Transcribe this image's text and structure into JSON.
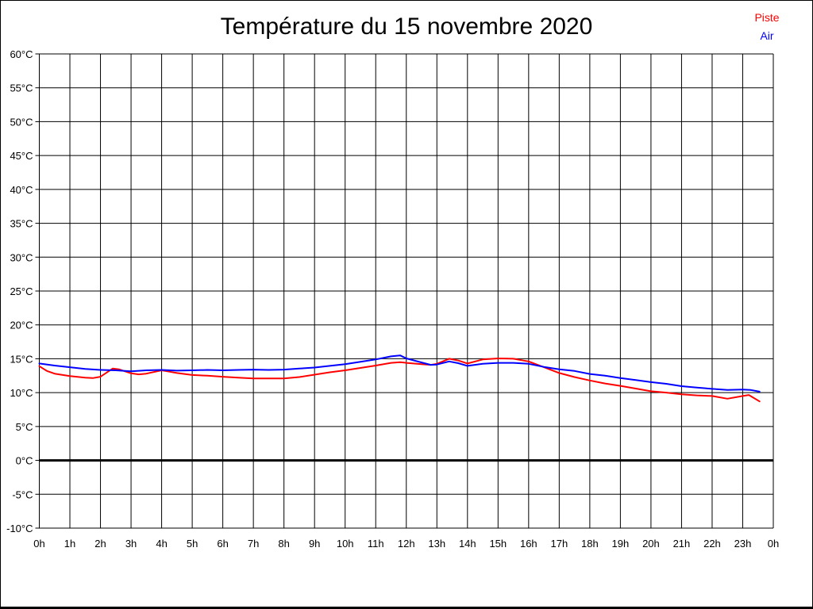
{
  "chart_data": {
    "type": "line",
    "title": "Température du 15 novembre 2020",
    "xlabel": "",
    "ylabel": "",
    "xlim": [
      0,
      24
    ],
    "ylim": [
      -10,
      60
    ],
    "y_step_deg": 5,
    "grid": "on",
    "zero_line_bold": true,
    "legend_position": "top-right",
    "x_ticks": [
      "0h",
      "1h",
      "2h",
      "3h",
      "4h",
      "5h",
      "6h",
      "7h",
      "8h",
      "9h",
      "10h",
      "11h",
      "12h",
      "13h",
      "14h",
      "15h",
      "16h",
      "17h",
      "18h",
      "19h",
      "20h",
      "21h",
      "22h",
      "23h",
      "0h"
    ],
    "y_ticks": [
      "60°C",
      "55°C",
      "50°C",
      "45°C",
      "40°C",
      "35°C",
      "30°C",
      "25°C",
      "20°C",
      "15°C",
      "10°C",
      "5°C",
      "0°C",
      "-5°C",
      "-10°C"
    ],
    "series": [
      {
        "name": "Piste",
        "color": "#ff0000",
        "points": [
          [
            0,
            13.9
          ],
          [
            0.25,
            13.2
          ],
          [
            0.5,
            12.8
          ],
          [
            1,
            12.45
          ],
          [
            1.5,
            12.2
          ],
          [
            1.75,
            12.15
          ],
          [
            2,
            12.35
          ],
          [
            2.4,
            13.55
          ],
          [
            2.6,
            13.45
          ],
          [
            3,
            12.85
          ],
          [
            3.25,
            12.7
          ],
          [
            3.5,
            12.8
          ],
          [
            4,
            13.3
          ],
          [
            4.25,
            13.1
          ],
          [
            4.5,
            12.9
          ],
          [
            5,
            12.6
          ],
          [
            5.5,
            12.5
          ],
          [
            6,
            12.35
          ],
          [
            6.5,
            12.2
          ],
          [
            7,
            12.1
          ],
          [
            7.5,
            12.1
          ],
          [
            8,
            12.1
          ],
          [
            8.5,
            12.3
          ],
          [
            9,
            12.65
          ],
          [
            9.5,
            13.0
          ],
          [
            10,
            13.3
          ],
          [
            10.5,
            13.65
          ],
          [
            11,
            14.0
          ],
          [
            11.5,
            14.4
          ],
          [
            11.8,
            14.5
          ],
          [
            12,
            14.4
          ],
          [
            12.5,
            14.2
          ],
          [
            12.8,
            14.1
          ],
          [
            13,
            14.25
          ],
          [
            13.4,
            15.0
          ],
          [
            13.7,
            14.75
          ],
          [
            14,
            14.3
          ],
          [
            14.5,
            14.9
          ],
          [
            15,
            15.05
          ],
          [
            15.5,
            15.0
          ],
          [
            16,
            14.6
          ],
          [
            16.5,
            13.75
          ],
          [
            17,
            12.9
          ],
          [
            17.5,
            12.3
          ],
          [
            18,
            11.8
          ],
          [
            18.5,
            11.35
          ],
          [
            19,
            11.0
          ],
          [
            19.5,
            10.6
          ],
          [
            20,
            10.2
          ],
          [
            20.5,
            10.0
          ],
          [
            21,
            9.75
          ],
          [
            21.5,
            9.6
          ],
          [
            22,
            9.5
          ],
          [
            22.5,
            9.1
          ],
          [
            23,
            9.5
          ],
          [
            23.2,
            9.65
          ],
          [
            23.55,
            8.7
          ]
        ]
      },
      {
        "name": "Air",
        "color": "#0000ff",
        "points": [
          [
            0,
            14.3
          ],
          [
            0.5,
            14.0
          ],
          [
            1,
            13.75
          ],
          [
            1.5,
            13.5
          ],
          [
            2,
            13.35
          ],
          [
            2.5,
            13.3
          ],
          [
            3,
            13.15
          ],
          [
            3.5,
            13.3
          ],
          [
            4,
            13.35
          ],
          [
            4.5,
            13.25
          ],
          [
            5,
            13.3
          ],
          [
            5.5,
            13.35
          ],
          [
            6,
            13.3
          ],
          [
            6.5,
            13.35
          ],
          [
            7,
            13.4
          ],
          [
            7.5,
            13.35
          ],
          [
            8,
            13.4
          ],
          [
            8.5,
            13.55
          ],
          [
            9,
            13.7
          ],
          [
            9.5,
            13.95
          ],
          [
            10,
            14.2
          ],
          [
            10.5,
            14.55
          ],
          [
            11,
            14.9
          ],
          [
            11.5,
            15.35
          ],
          [
            11.8,
            15.5
          ],
          [
            12,
            15.05
          ],
          [
            12.5,
            14.45
          ],
          [
            12.8,
            14.1
          ],
          [
            13,
            14.15
          ],
          [
            13.4,
            14.6
          ],
          [
            13.7,
            14.35
          ],
          [
            14,
            13.95
          ],
          [
            14.5,
            14.25
          ],
          [
            15,
            14.4
          ],
          [
            15.5,
            14.4
          ],
          [
            16,
            14.25
          ],
          [
            16.5,
            13.8
          ],
          [
            17,
            13.45
          ],
          [
            17.5,
            13.2
          ],
          [
            18,
            12.75
          ],
          [
            18.5,
            12.5
          ],
          [
            19,
            12.15
          ],
          [
            19.5,
            11.85
          ],
          [
            20,
            11.55
          ],
          [
            20.5,
            11.3
          ],
          [
            21,
            10.95
          ],
          [
            21.5,
            10.75
          ],
          [
            22,
            10.55
          ],
          [
            22.5,
            10.4
          ],
          [
            23,
            10.45
          ],
          [
            23.25,
            10.4
          ],
          [
            23.55,
            10.15
          ]
        ]
      }
    ],
    "colors": {
      "background": "#ffffff",
      "grid": "#000000",
      "title": "#000000",
      "piste": "#ff0000",
      "air": "#0000ff"
    }
  }
}
